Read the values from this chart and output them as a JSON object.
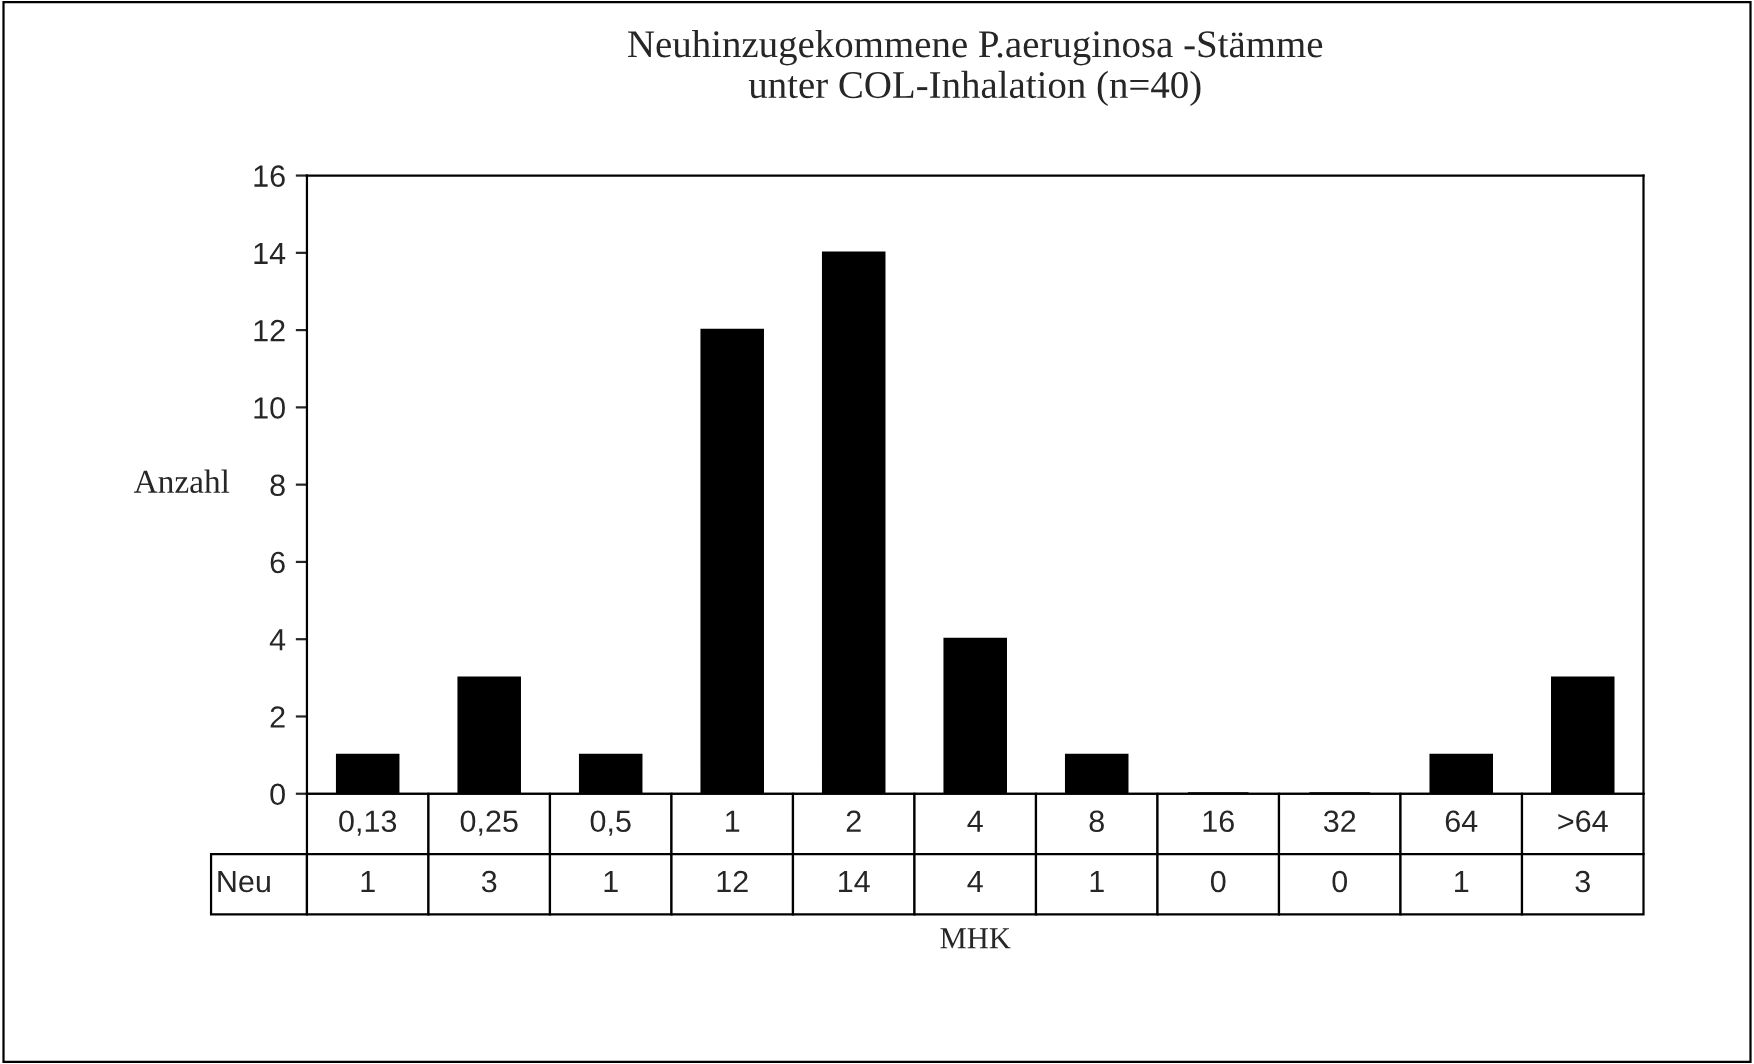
{
  "chart_data": {
    "type": "bar",
    "title": "Neuhinzugekommene P.aeruginosa -Stämme\nunter COL-Inhalation (n=40)",
    "xlabel": "MHK",
    "ylabel": "Anzahl",
    "categories": [
      "0,13",
      "0,25",
      "0,5",
      "1",
      "2",
      "4",
      "8",
      "16",
      "32",
      "64",
      ">64"
    ],
    "series": [
      {
        "name": "Neu",
        "color": "#000000",
        "values": [
          1,
          3,
          1,
          12,
          14,
          4,
          1,
          0,
          0,
          1,
          3
        ]
      }
    ],
    "ylim": [
      0,
      16
    ],
    "yticks": [
      0,
      2,
      4,
      6,
      8,
      10,
      12,
      14,
      16
    ],
    "grid": false,
    "legend": "bottom",
    "data_labels": true
  }
}
